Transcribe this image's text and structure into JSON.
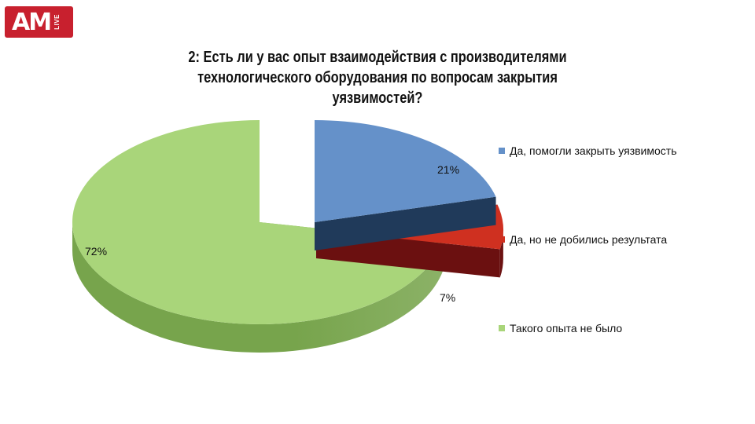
{
  "logo": {
    "main": "AM",
    "sub": "LIVE"
  },
  "title": "2: Есть ли у вас опыт взаимодействия с производителями технологического оборудования по вопросам закрытия уязвимостей?",
  "chart_data": {
    "type": "pie",
    "title": "2: Есть ли у вас опыт взаимодействия с производителями технологического оборудования по вопросам закрытия уязвимостей?",
    "legend_position": "right",
    "slices": [
      {
        "label": "Да, помогли закрыть уязвимость",
        "value": 21,
        "display": "21%",
        "color": "#6591c9",
        "side_color": "#203a5a"
      },
      {
        "label": "Да, но не добились результата",
        "value": 7,
        "display": "7%",
        "color": "#cf3020",
        "side_color": "#6b1010"
      },
      {
        "label": "Такого опыта не было",
        "value": 72,
        "display": "72%",
        "color": "#a9d57a",
        "side_color": "#77a44c"
      }
    ]
  }
}
